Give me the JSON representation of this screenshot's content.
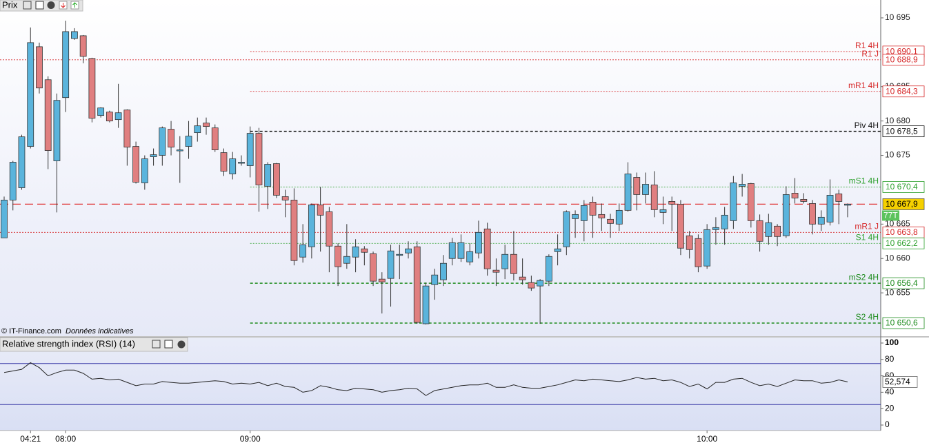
{
  "chart_data": [
    {
      "type": "candlestick",
      "title": "Prix",
      "source": "© IT-Finance.com",
      "note": "Données indicatives",
      "up_color": "#5ab4dc",
      "down_color": "#e07f80",
      "categories": [
        null,
        null,
        null,
        "04:21",
        null,
        null,
        null,
        "08:00",
        null,
        null,
        null,
        null,
        null,
        null,
        null,
        null,
        null,
        null,
        null,
        null,
        null,
        null,
        null,
        null,
        null,
        null,
        null,
        null,
        "09:00",
        null,
        null,
        null,
        null,
        null,
        null,
        null,
        null,
        null,
        null,
        null,
        null,
        null,
        null,
        null,
        null,
        null,
        null,
        null,
        null,
        null,
        null,
        null,
        null,
        null,
        null,
        null,
        null,
        null,
        null,
        null,
        null,
        null,
        null,
        null,
        null,
        null,
        null,
        null,
        null,
        null,
        null,
        null,
        null,
        null,
        null,
        null,
        null,
        null,
        null,
        null,
        "10:00",
        null,
        null,
        null,
        null,
        null,
        null,
        null,
        null,
        null,
        null,
        null,
        null,
        null,
        null,
        null,
        null
      ],
      "open": [
        10663,
        10668.5,
        10670.3,
        10676.3,
        10690.8,
        10686,
        10674.2,
        10683.4,
        10692,
        10692.4,
        10689.1,
        10680.8,
        10681.3,
        10680.2,
        10681.6,
        10676.3,
        10671,
        10674.8,
        10675,
        10678.8,
        10675.8,
        10676.3,
        10678.3,
        10679.7,
        10679,
        10675.4,
        10672.3,
        10674,
        10673.5,
        10678.2,
        10670.5,
        10673.8,
        10669,
        10668.5,
        10660.2,
        10661.7,
        10667.8,
        10666.8,
        10661.8,
        10659.3,
        10660.2,
        10661.4,
        10660.7,
        10657,
        10657.1,
        10660.6,
        10660.8,
        10661.7,
        10650.5,
        10656.2,
        10656.9,
        10660,
        10660,
        10659.5,
        10660.8,
        10664.3,
        10658.3,
        10658.5,
        10660.6,
        10657.3,
        10656.5,
        10656,
        10656.7,
        10661,
        10661.7,
        10665.8,
        10665.5,
        10668.2,
        10666.4,
        10665.7,
        10665,
        10667,
        10671.8,
        10669.3,
        10670.7,
        10666.7,
        10668.3,
        10667.9,
        10663.3,
        10662.9,
        10658.9,
        10664.2,
        10664.3,
        10665.5,
        10670.5,
        10670.9,
        10665.5,
        10663.2,
        10664.7,
        10663.3,
        10669.5,
        10668.6,
        10668,
        10665,
        10665.3,
        10669.4,
        10667.9
      ],
      "high": [
        10669,
        10674.2,
        10678,
        10693.6,
        10691.4,
        10686.5,
        10684,
        10694.6,
        10693.5,
        10692.5,
        10689.2,
        10682,
        10681.5,
        10685.4,
        10681.7,
        10677,
        10675,
        10676,
        10679.2,
        10680,
        10677.8,
        10680,
        10680.5,
        10680.5,
        10679.5,
        10676,
        10675.5,
        10675,
        10679.2,
        10679,
        10674,
        10673.9,
        10670,
        10670.2,
        10665,
        10668,
        10670.4,
        10667.5,
        10662.2,
        10665,
        10662.8,
        10661.8,
        10661,
        10658,
        10662,
        10662,
        10662.5,
        10662.5,
        10656.5,
        10658.5,
        10660.5,
        10663,
        10663.5,
        10662.2,
        10665.5,
        10665.2,
        10660,
        10662,
        10664,
        10660,
        10657.5,
        10657,
        10660.6,
        10663.5,
        10667,
        10667,
        10668.5,
        10669,
        10668,
        10666.5,
        10668,
        10674,
        10672.5,
        10672.5,
        10672.7,
        10669,
        10669,
        10668.5,
        10664,
        10663.5,
        10665,
        10666,
        10667.5,
        10672,
        10672.3,
        10671,
        10666.4,
        10666.5,
        10665,
        10670.5,
        10671.7,
        10669.5,
        10668.5,
        10667,
        10671.5,
        10670,
        10668
      ],
      "low": [
        10663,
        10667,
        10670,
        10676,
        10684,
        10673,
        10666.7,
        10681.3,
        10691.8,
        10688.4,
        10679.8,
        10680.5,
        10679.8,
        10679,
        10673.5,
        10670.9,
        10670,
        10673.5,
        10673.5,
        10675,
        10671,
        10674.5,
        10677,
        10678,
        10675.5,
        10672,
        10671.5,
        10673.5,
        10671.8,
        10666.8,
        10667.2,
        10668.8,
        10666,
        10659,
        10659.4,
        10660,
        10661,
        10658,
        10656,
        10658.5,
        10658,
        10659,
        10656,
        10652,
        10653,
        10657,
        10660,
        10650.5,
        10650.4,
        10654,
        10656,
        10659,
        10659.5,
        10659,
        10660,
        10657.5,
        10656,
        10657,
        10656.8,
        10656.2,
        10655.3,
        10650.5,
        10656,
        10659,
        10660.5,
        10663,
        10662.5,
        10663,
        10664,
        10663,
        10664,
        10666.8,
        10667,
        10668,
        10666,
        10665,
        10664,
        10660.5,
        10660,
        10658,
        10658.5,
        10662,
        10662,
        10664.3,
        10669,
        10664.5,
        10661,
        10662,
        10661.8,
        10663,
        10668,
        10668,
        10663.5,
        10664,
        10664.8,
        10665,
        10666
      ],
      "close": [
        10668.5,
        10674,
        10677.7,
        10691.4,
        10684.8,
        10675.7,
        10683,
        10693,
        10693,
        10689.4,
        10680.4,
        10681.9,
        10680,
        10681.2,
        10676.2,
        10671.1,
        10674.5,
        10675.1,
        10679,
        10676.2,
        10675.8,
        10677.8,
        10679.3,
        10679.2,
        10675.8,
        10672.7,
        10674.5,
        10674,
        10678.2,
        10670.7,
        10673.7,
        10669.2,
        10668.5,
        10659.7,
        10662,
        10667.8,
        10666.3,
        10661.8,
        10658.8,
        10660.3,
        10661.7,
        10660.9,
        10656.7,
        10656.6,
        10661.1,
        10660.6,
        10661.4,
        10650.7,
        10656,
        10657.6,
        10659.3,
        10662.3,
        10662.3,
        10661,
        10663.8,
        10658.5,
        10658,
        10660.6,
        10657.8,
        10656.9,
        10655.7,
        10656.8,
        10660.3,
        10661.4,
        10666.8,
        10666.4,
        10667.7,
        10666.3,
        10665.9,
        10665.1,
        10667,
        10672.3,
        10669.3,
        10670.8,
        10667.1,
        10667.1,
        10667.9,
        10661.5,
        10661.3,
        10658.8,
        10664.2,
        10664.5,
        10666.3,
        10671,
        10670.8,
        10665.5,
        10662.5,
        10665.2,
        10663.2,
        10669.3,
        10668.8,
        10668.3,
        10665,
        10666,
        10669.2,
        10668.3,
        10667.9
      ],
      "ylim": [
        10648.7,
        10697.6
      ],
      "yticks": [
        {
          "value": 10655,
          "label": "10 655"
        },
        {
          "value": 10660,
          "label": "10 660"
        },
        {
          "value": 10665,
          "label": "10 665"
        },
        {
          "value": 10675,
          "label": "10 675"
        },
        {
          "value": 10680,
          "label": "10 680"
        },
        {
          "value": 10685,
          "label": "10 685"
        },
        {
          "value": 10695,
          "label": "10 695"
        }
      ],
      "levels": [
        {
          "name": "R1 4H",
          "value": 10690.1,
          "value_label": "10 690,1",
          "color": "#d62728",
          "line_style": "dotted"
        },
        {
          "name": "R1 J",
          "value": 10688.9,
          "value_label": "10 688,9",
          "color": "#d62728",
          "line_style": "dotted"
        },
        {
          "name": "mR1 4H",
          "value": 10684.3,
          "value_label": "10 684,3",
          "color": "#d62728",
          "line_style": "dotted"
        },
        {
          "name": "Piv 4H",
          "value": 10678.5,
          "value_label": "10 678,5",
          "color": "#111111",
          "line_style": "dashed"
        },
        {
          "name": "mS1 4H",
          "value": 10670.4,
          "value_label": "10 670,4",
          "color": "#2ca02c",
          "line_style": "dotted"
        },
        {
          "name": "mR1 J",
          "value": 10663.8,
          "value_label": "10 663,8",
          "color": "#d62728",
          "line_style": "dotted"
        },
        {
          "name": "S1 4H",
          "value": 10662.2,
          "value_label": "10 662,2",
          "color": "#2ca02c",
          "line_style": "dotted"
        },
        {
          "name": "mS2 4H",
          "value": 10656.4,
          "value_label": "10 656,4",
          "color": "#1a8a1a",
          "line_style": "dashed"
        },
        {
          "name": "S2 4H",
          "value": 10650.6,
          "value_label": "10 650,6",
          "color": "#1a8a1a",
          "line_style": "dashed"
        }
      ],
      "last": {
        "value": 10667.9,
        "label": "10 667,9",
        "color": "#e03030",
        "badge": "77T"
      }
    },
    {
      "type": "line",
      "title": "Relative strength index (RSI) (14)",
      "color": "#222222",
      "values": [
        64,
        66,
        68,
        76,
        70,
        60,
        64,
        67,
        67,
        63,
        56,
        57,
        55,
        56,
        52,
        48,
        50,
        50,
        53,
        52,
        51,
        51,
        52,
        53,
        54,
        53,
        50,
        51,
        50,
        52,
        48,
        51,
        47,
        46,
        40,
        42,
        48,
        46,
        43,
        42,
        45,
        44,
        43,
        40,
        42,
        43,
        45,
        44,
        36,
        42,
        44,
        46,
        48,
        49,
        49,
        51,
        46,
        46,
        49,
        46,
        45,
        45,
        47,
        49,
        52,
        55,
        54,
        56,
        55,
        54,
        53,
        55,
        58,
        56,
        57,
        54,
        55,
        52,
        47,
        50,
        44,
        52,
        52,
        56,
        57,
        52,
        48,
        50,
        47,
        51,
        55,
        54,
        54,
        51,
        52,
        55,
        52.574
      ],
      "last_label": "52,574",
      "ylim": [
        -6.7,
        106.7
      ],
      "yticks": [
        0,
        20,
        40,
        60,
        80,
        100
      ],
      "bands": [
        75,
        25
      ],
      "band_color": "#3a3aa8"
    }
  ]
}
